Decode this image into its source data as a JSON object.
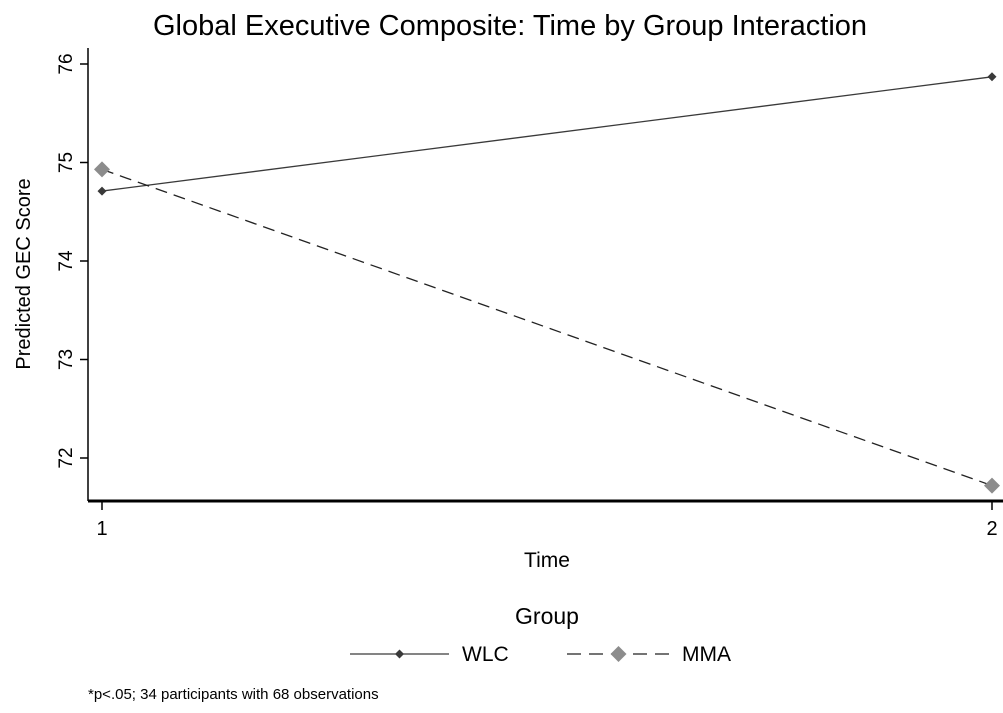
{
  "chart_data": {
    "type": "line",
    "title": "Global Executive Composite: Time by Group Interaction",
    "xlabel": "Time",
    "ylabel": "Predicted GEC Score",
    "x": [
      1,
      2
    ],
    "x_ticks": [
      "1",
      "2"
    ],
    "y_ticks": [
      "72",
      "73",
      "74",
      "75",
      "76"
    ],
    "ylim": [
      71.55,
      76.15
    ],
    "grid": false,
    "legend": {
      "title": "Group",
      "placement": "bottom"
    },
    "series": [
      {
        "name": "WLC",
        "values": [
          74.71,
          75.87
        ],
        "color": "#3a3a3a",
        "dash": "solid",
        "marker": "small-diamond"
      },
      {
        "name": "MMA",
        "values": [
          74.93,
          71.72
        ],
        "color": "#8c8c8c",
        "dash": "dashed",
        "marker": "large-diamond"
      }
    ]
  },
  "footnote": "*p<.05; 34 participants with 68 observations"
}
